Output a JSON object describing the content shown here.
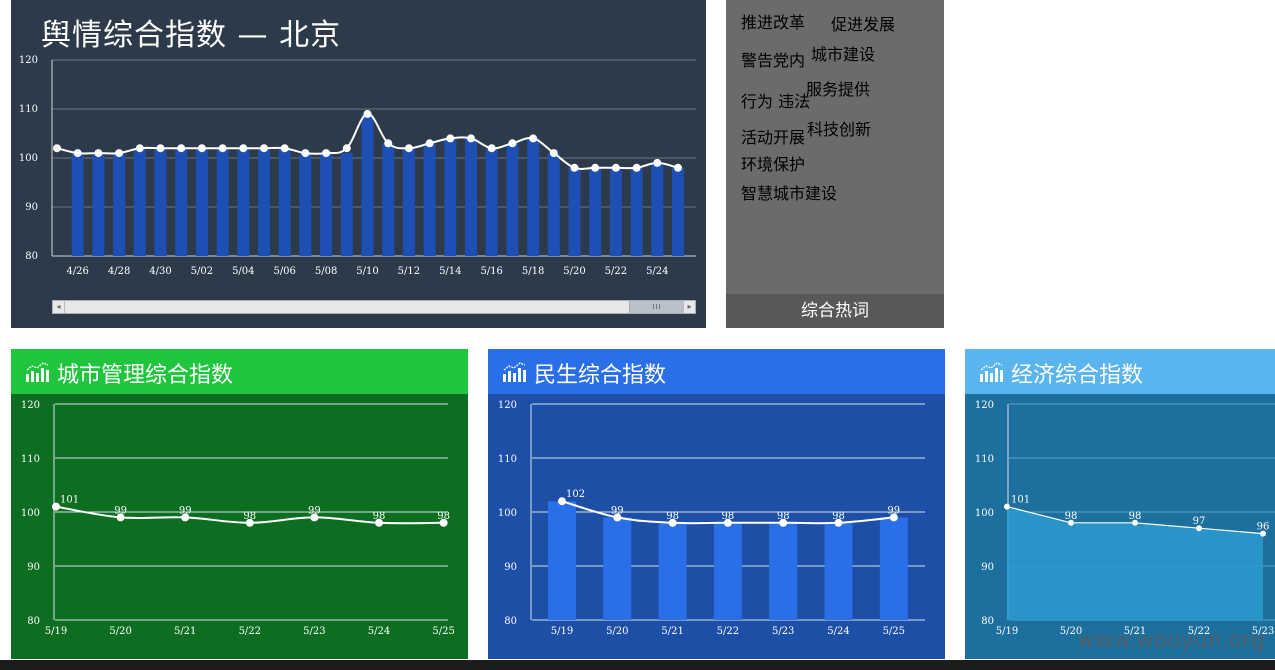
{
  "main": {
    "title": "舆情综合指数 — 北京",
    "chart_data": {
      "type": "bar+line",
      "ylim": [
        80,
        120
      ],
      "yticks": [
        80,
        90,
        100,
        110,
        120
      ],
      "x": [
        "4/25",
        "4/26",
        "4/27",
        "4/28",
        "4/29",
        "4/30",
        "5/01",
        "5/02",
        "5/03",
        "5/04",
        "5/05",
        "5/06",
        "5/07",
        "5/08",
        "5/09",
        "5/10",
        "5/11",
        "5/12",
        "5/13",
        "5/14",
        "5/15",
        "5/16",
        "5/17",
        "5/18",
        "5/19",
        "5/20",
        "5/21",
        "5/22",
        "5/23",
        "5/24",
        "5/25"
      ],
      "xtick_labels": [
        "4/26",
        "4/28",
        "4/30",
        "5/02",
        "5/04",
        "5/06",
        "5/08",
        "5/10",
        "5/12",
        "5/14",
        "5/16",
        "5/18",
        "5/20",
        "5/22",
        "5/24"
      ],
      "bar_values": [
        101,
        101,
        101,
        101,
        102,
        102,
        102,
        102,
        102,
        102,
        102,
        102,
        101,
        101,
        101,
        109,
        103,
        102,
        103,
        104,
        104,
        102,
        103,
        104,
        101,
        98,
        98,
        98,
        98,
        99,
        98
      ],
      "line_values": [
        102,
        101,
        101,
        101,
        102,
        102,
        102,
        102,
        102,
        102,
        102,
        102,
        101,
        101,
        102,
        109,
        103,
        102,
        103,
        104,
        104,
        102,
        103,
        104,
        101,
        98,
        98,
        98,
        98,
        99,
        98
      ],
      "bar_color": "#1e4fb5",
      "line_color": "#ffffff",
      "grid": true
    }
  },
  "words": {
    "footer": "综合热词",
    "items": [
      {
        "text": "推进改革",
        "color": "#e8735a",
        "size": 17
      },
      {
        "text": "促进发展",
        "color": "#f1e6da",
        "size": 15
      },
      {
        "text": "警告党内",
        "color": "#ffffff",
        "size": 12
      },
      {
        "text": "城市建设",
        "color": "#e8735a",
        "size": 19
      },
      {
        "text": "行为 违法",
        "color": "#e8735a",
        "size": 10
      },
      {
        "text": "服务提供",
        "color": "#ffffff",
        "size": 24
      },
      {
        "text": "活动开展",
        "color": "#ffffff",
        "size": 11
      },
      {
        "text": "科技创新",
        "color": "#e8735a",
        "size": 20
      },
      {
        "text": "环境保护",
        "color": "#ffffff",
        "size": 13
      },
      {
        "text": "智慧城市建设",
        "color": "#e8735a",
        "size": 27
      }
    ]
  },
  "panels": [
    {
      "title": "城市管理综合指数",
      "header_color": "#1fc53c",
      "body_color": "#0d6e22",
      "chart_data": {
        "type": "line",
        "ylim": [
          80,
          120
        ],
        "yticks": [
          80,
          90,
          100,
          110,
          120
        ],
        "categories": [
          "5/19",
          "5/20",
          "5/21",
          "5/22",
          "5/23",
          "5/24",
          "5/25"
        ],
        "values": [
          101,
          99,
          99,
          98,
          99,
          98,
          98
        ],
        "data_labels": [
          "101",
          "99",
          "99",
          "98",
          "99",
          "98",
          "98"
        ]
      }
    },
    {
      "title": "民生综合指数",
      "header_color": "#2a6fe8",
      "body_color": "#1d4fa6",
      "chart_data": {
        "type": "bar+line",
        "ylim": [
          80,
          120
        ],
        "yticks": [
          80,
          90,
          100,
          110,
          120
        ],
        "categories": [
          "5/19",
          "5/20",
          "5/21",
          "5/22",
          "5/23",
          "5/24",
          "5/25"
        ],
        "values": [
          102,
          99,
          98,
          98,
          98,
          98,
          99
        ],
        "data_labels": [
          "102",
          "99",
          "98",
          "98",
          "98",
          "98",
          "99"
        ],
        "bar_color": "#2a6fe8"
      }
    },
    {
      "title": "经济综合指数",
      "header_color": "#5ab4ee",
      "body_color": "#1d6f9e",
      "chart_data": {
        "type": "area",
        "ylim": [
          80,
          120
        ],
        "yticks": [
          80,
          90,
          100,
          110,
          120
        ],
        "categories": [
          "5/19",
          "5/20",
          "5/21",
          "5/22",
          "5/23"
        ],
        "values": [
          101,
          98,
          98,
          97,
          96
        ],
        "data_labels": [
          "101",
          "98",
          "98",
          "97",
          "96"
        ],
        "area_color": "#2a9bcf"
      }
    }
  ],
  "watermark": "www.wooyun.org"
}
